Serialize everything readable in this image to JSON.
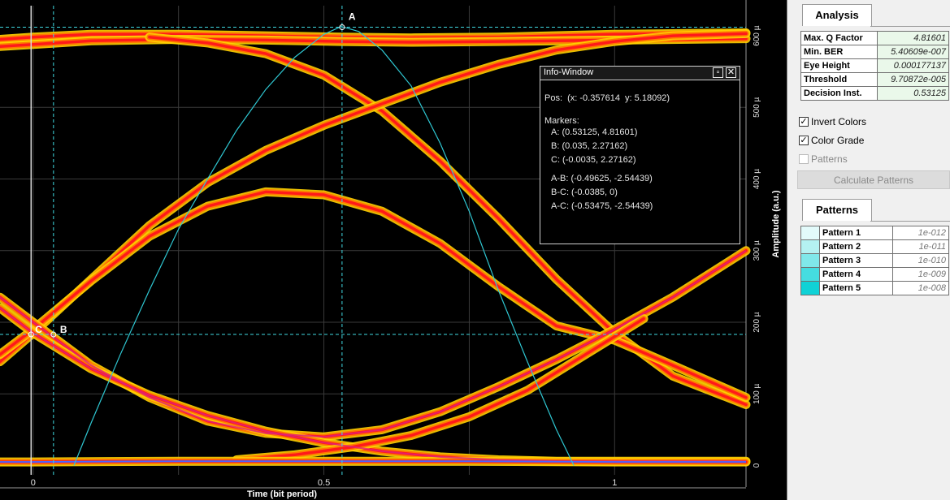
{
  "chart_data": {
    "type": "line",
    "title": "",
    "xlabel": "Time (bit period)",
    "ylabel": "Amplitude (a.u.)",
    "xlim": [
      -0.057,
      1.226
    ],
    "ylim": [
      -1.3e-05,
      0.000642
    ],
    "x_ticks": [
      {
        "value": 0,
        "label": "0"
      },
      {
        "value": 0.5,
        "label": "0.5"
      },
      {
        "value": 1,
        "label": "1"
      }
    ],
    "y_ticks": [
      {
        "value": 0,
        "label": "0"
      },
      {
        "value": 0.0001,
        "label": "100 µ"
      },
      {
        "value": 0.0002,
        "label": "200 µ"
      },
      {
        "value": 0.0003,
        "label": "300 µ"
      },
      {
        "value": 0.0004,
        "label": "400 µ"
      },
      {
        "value": 0.0005,
        "label": "500 µ"
      },
      {
        "value": 0.0006,
        "label": "600 µ"
      }
    ],
    "grid": true,
    "eye_traces": [
      {
        "x": [
          -0.057,
          0,
          0.1,
          0.25,
          0.4,
          0.53,
          0.65,
          0.8,
          1,
          1.226
        ],
        "y": [
          0.000595,
          0.000598,
          0.000602,
          0.000602,
          0.0006,
          0.000598,
          0.000597,
          0.000598,
          0.000602,
          0.000604
        ]
      },
      {
        "x": [
          -0.057,
          0,
          0.1,
          0.25,
          0.4,
          0.53,
          0.65,
          0.8,
          1,
          1.226
        ],
        "y": [
          0.000585,
          0.000588,
          0.000593,
          0.000595,
          0.000594,
          0.000592,
          0.000591,
          0.000592,
          0.000594,
          0.000596
        ]
      },
      {
        "x": [
          0.2,
          0.3,
          0.4,
          0.5,
          0.6,
          0.7,
          0.8,
          0.9,
          1.0,
          1.1,
          1.226
        ],
        "y": [
          0.000598,
          0.00059,
          0.000575,
          0.000545,
          0.000495,
          0.000425,
          0.000345,
          0.00026,
          0.000185,
          0.000125,
          8.5e-05
        ]
      },
      {
        "x": [
          -0.057,
          0,
          0.1,
          0.2,
          0.3,
          0.4,
          0.5,
          0.6,
          0.7,
          0.8,
          0.9,
          1.0,
          1.1,
          1.226
        ],
        "y": [
          0.000145,
          0.000185,
          0.00026,
          0.000335,
          0.000395,
          0.00044,
          0.000475,
          0.000505,
          0.000535,
          0.00056,
          0.00058,
          0.000592,
          0.0006,
          0.000603
        ]
      },
      {
        "x": [
          -0.057,
          0,
          0.1,
          0.2,
          0.3,
          0.4,
          0.5,
          0.6,
          0.7,
          0.8,
          0.9,
          1.0,
          1.1,
          1.226
        ],
        "y": [
          0.000155,
          0.00019,
          0.000258,
          0.00032,
          0.000362,
          0.000382,
          0.000378,
          0.000355,
          0.00031,
          0.00025,
          0.000195,
          0.000175,
          0.00014,
          9.5e-05
        ]
      },
      {
        "x": [
          -0.057,
          0,
          0.1,
          0.2,
          0.3,
          0.4,
          0.5,
          0.6,
          0.7,
          0.8,
          0.9,
          1.0,
          1.1,
          1.226
        ],
        "y": [
          0.000235,
          0.0002,
          0.00014,
          9.5e-05,
          6.2e-05,
          4.5e-05,
          4e-05,
          5e-05,
          7.5e-05,
          0.00011,
          0.000148,
          0.00019,
          0.000235,
          0.0003
        ]
      },
      {
        "x": [
          -0.057,
          0,
          0.1,
          0.2,
          0.3,
          0.4,
          0.5,
          0.6,
          0.7,
          0.8,
          0.9,
          1.0,
          1.1,
          1.226
        ],
        "y": [
          0.00022,
          0.000185,
          0.000135,
          9.8e-05,
          7e-05,
          4.8e-05,
          3.2e-05,
          2e-05,
          1.2e-05,
          8e-06,
          6e-06,
          6e-06,
          6e-06,
          6e-06
        ]
      },
      {
        "x": [
          0.35,
          0.45,
          0.55,
          0.65,
          0.75,
          0.85,
          0.95,
          1.05
        ],
        "y": [
          8e-06,
          1.5e-05,
          2.6e-05,
          4.2e-05,
          6.8e-05,
          0.000105,
          0.000155,
          0.000205
        ]
      },
      {
        "x": [
          -0.057,
          0,
          0.25,
          0.5,
          0.75,
          1,
          1.226
        ],
        "y": [
          5e-06,
          5e-06,
          6e-06,
          6e-06,
          6e-06,
          5e-06,
          5e-06
        ]
      }
    ],
    "bathtub_curve": {
      "x": [
        0.07,
        0.1,
        0.15,
        0.2,
        0.25,
        0.3,
        0.35,
        0.4,
        0.45,
        0.5,
        0.53,
        0.56,
        0.6,
        0.65,
        0.7,
        0.75,
        0.8,
        0.85,
        0.9,
        0.93
      ],
      "y": [
        0,
        6e-05,
        0.000155,
        0.000245,
        0.00033,
        0.0004,
        0.000468,
        0.000525,
        0.00057,
        0.000602,
        0.000613,
        0.000606,
        0.00058,
        0.00053,
        0.00045,
        0.000355,
        0.000245,
        0.000145,
        5e-05,
        0
      ]
    },
    "markers": [
      {
        "name": "A",
        "x": 0.53125,
        "y": 0.000612
      },
      {
        "name": "B",
        "x": 0.035,
        "y": 0.000183
      },
      {
        "name": "C",
        "x": -0.0035,
        "y": 0.000183
      }
    ]
  },
  "info_window": {
    "title": "Info-Window",
    "pos": "Pos:  (x: -0.357614  y: 5.18092)",
    "markers_heading": "Markers:",
    "lines": [
      "A: (0.53125, 4.81601)",
      "B: (0.035, 2.27162)",
      "C: (-0.0035, 2.27162)",
      "A-B: (-0.49625, -2.54439)",
      "B-C: (-0.0385, 0)",
      "A-C: (-0.53475, -2.54439)"
    ]
  },
  "analysis": {
    "tab_label": "Analysis",
    "rows": [
      {
        "label": "Max. Q Factor",
        "value": "4.81601"
      },
      {
        "label": "Min. BER",
        "value": "5.40609e-007"
      },
      {
        "label": "Eye Height",
        "value": "0.000177137"
      },
      {
        "label": "Threshold",
        "value": "9.70872e-005"
      },
      {
        "label": "Decision Inst.",
        "value": "0.53125"
      }
    ]
  },
  "options": {
    "invert_colors": {
      "label": "Invert Colors",
      "checked": true
    },
    "color_grade": {
      "label": "Color Grade",
      "checked": true
    },
    "patterns": {
      "label": "Patterns",
      "checked": false
    }
  },
  "calculate_button": "Calculate Patterns",
  "patterns": {
    "tab_label": "Patterns",
    "rows": [
      {
        "label": "Pattern 1",
        "value": "1e-012",
        "color": "#e3fbfb"
      },
      {
        "label": "Pattern 2",
        "value": "1e-011",
        "color": "#b4f1f1"
      },
      {
        "label": "Pattern 3",
        "value": "1e-010",
        "color": "#80e8ea"
      },
      {
        "label": "Pattern 4",
        "value": "1e-009",
        "color": "#45dde0"
      },
      {
        "label": "Pattern 5",
        "value": "1e-008",
        "color": "#10d2d6"
      }
    ]
  },
  "colors": {
    "trace_outer": "#ffd000",
    "trace_mid": "#ff7a00",
    "trace_core": "#ff1a1a",
    "trace_hot": "#e0207a",
    "grid": "#3a3a3a",
    "marker_line": "#3fd8e0",
    "bathtub": "#2fc7d2"
  }
}
